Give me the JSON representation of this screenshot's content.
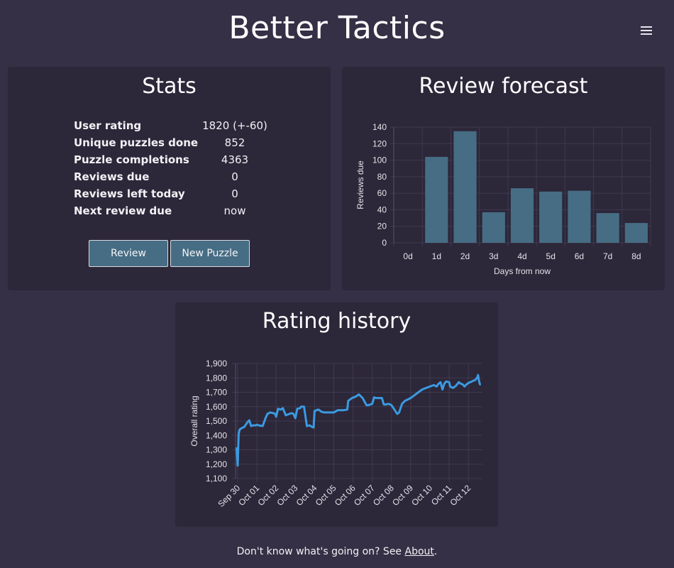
{
  "app": {
    "title": "Better Tactics"
  },
  "stats": {
    "title": "Stats",
    "rows": [
      {
        "label": "User rating",
        "value": "1820 (+-60)"
      },
      {
        "label": "Unique puzzles done",
        "value": "852"
      },
      {
        "label": "Puzzle completions",
        "value": "4363"
      },
      {
        "label": "Reviews due",
        "value": "0"
      },
      {
        "label": "Reviews left today",
        "value": "0"
      },
      {
        "label": "Next review due",
        "value": "now"
      }
    ],
    "review_label": "Review",
    "new_puzzle_label": "New Puzzle"
  },
  "forecast": {
    "title": "Review forecast"
  },
  "history": {
    "title": "Rating history"
  },
  "footer": {
    "prefix": "Don't know what's going on? See ",
    "link": "About",
    "suffix": "."
  },
  "colors": {
    "background": "#353045",
    "panel": "#2c2739",
    "bar": "#466d84",
    "line": "#3b9ae1",
    "button": "#466d84"
  },
  "chart_data": [
    {
      "type": "bar",
      "xlabel": "Days from now",
      "ylabel": "Reviews due",
      "categories": [
        "0d",
        "1d",
        "2d",
        "3d",
        "4d",
        "5d",
        "6d",
        "7d",
        "8d"
      ],
      "values": [
        0,
        104,
        135,
        37,
        66,
        62,
        63,
        36,
        24
      ],
      "ylim": [
        0,
        140
      ],
      "yticks": [
        0,
        20,
        40,
        60,
        80,
        100,
        120,
        140
      ],
      "grid": true
    },
    {
      "type": "line",
      "xlabel": "",
      "ylabel": "Overall rating",
      "xticks": [
        "Sep 30",
        "Oct 01",
        "Oct 02",
        "Oct 03",
        "Oct 04",
        "Oct 05",
        "Oct 06",
        "Oct 07",
        "Oct 08",
        "Oct 09",
        "Oct 10",
        "Oct 11",
        "Oct 12"
      ],
      "ylim": [
        1100,
        1900
      ],
      "yticks": [
        "1,100",
        "1,200",
        "1,300",
        "1,400",
        "1,500",
        "1,600",
        "1,700",
        "1,800",
        "1,900"
      ],
      "grid": true,
      "x": [
        -0.05,
        0.0,
        0.05,
        0.1,
        0.2,
        0.35,
        0.5,
        0.6,
        0.7,
        0.8,
        0.95,
        1.0,
        1.1,
        1.3,
        1.45,
        1.55,
        1.7,
        1.85,
        1.95,
        2.0,
        2.1,
        2.25,
        2.35,
        2.5,
        2.6,
        2.8,
        2.9,
        3.0,
        3.1,
        3.25,
        3.3,
        3.45,
        3.6,
        3.75,
        3.85,
        3.95,
        4.0,
        4.2,
        4.35,
        4.5,
        4.8,
        5.0,
        5.2,
        5.5,
        5.7,
        5.75,
        5.95,
        6.05,
        6.2,
        6.3,
        6.5,
        6.7,
        6.8,
        7.0,
        7.1,
        7.2,
        7.5,
        7.6,
        7.7,
        7.85,
        8.0,
        8.2,
        8.3,
        8.4,
        8.55,
        8.7,
        8.85,
        9.0,
        9.2,
        9.4,
        9.6,
        9.8,
        10.0,
        10.2,
        10.35,
        10.45,
        10.55,
        10.65,
        10.75,
        10.85,
        11.0,
        11.05,
        11.2,
        11.35,
        11.5,
        11.6,
        11.7,
        11.8,
        11.9,
        12.0,
        12.1,
        12.25,
        12.35,
        12.45,
        12.5,
        12.55,
        12.6
      ],
      "y": [
        1310,
        1190,
        1410,
        1440,
        1450,
        1460,
        1490,
        1505,
        1465,
        1470,
        1470,
        1475,
        1470,
        1465,
        1520,
        1550,
        1560,
        1555,
        1550,
        1530,
        1585,
        1580,
        1590,
        1540,
        1545,
        1555,
        1550,
        1520,
        1585,
        1590,
        1600,
        1600,
        1465,
        1470,
        1460,
        1455,
        1570,
        1580,
        1565,
        1560,
        1560,
        1560,
        1575,
        1575,
        1580,
        1640,
        1660,
        1665,
        1675,
        1685,
        1660,
        1610,
        1610,
        1620,
        1665,
        1660,
        1660,
        1615,
        1615,
        1620,
        1610,
        1570,
        1550,
        1560,
        1620,
        1640,
        1650,
        1660,
        1680,
        1700,
        1720,
        1730,
        1740,
        1750,
        1740,
        1760,
        1770,
        1720,
        1760,
        1775,
        1770,
        1740,
        1730,
        1745,
        1770,
        1760,
        1755,
        1740,
        1755,
        1765,
        1770,
        1780,
        1785,
        1800,
        1820,
        1780,
        1755
      ]
    }
  ]
}
